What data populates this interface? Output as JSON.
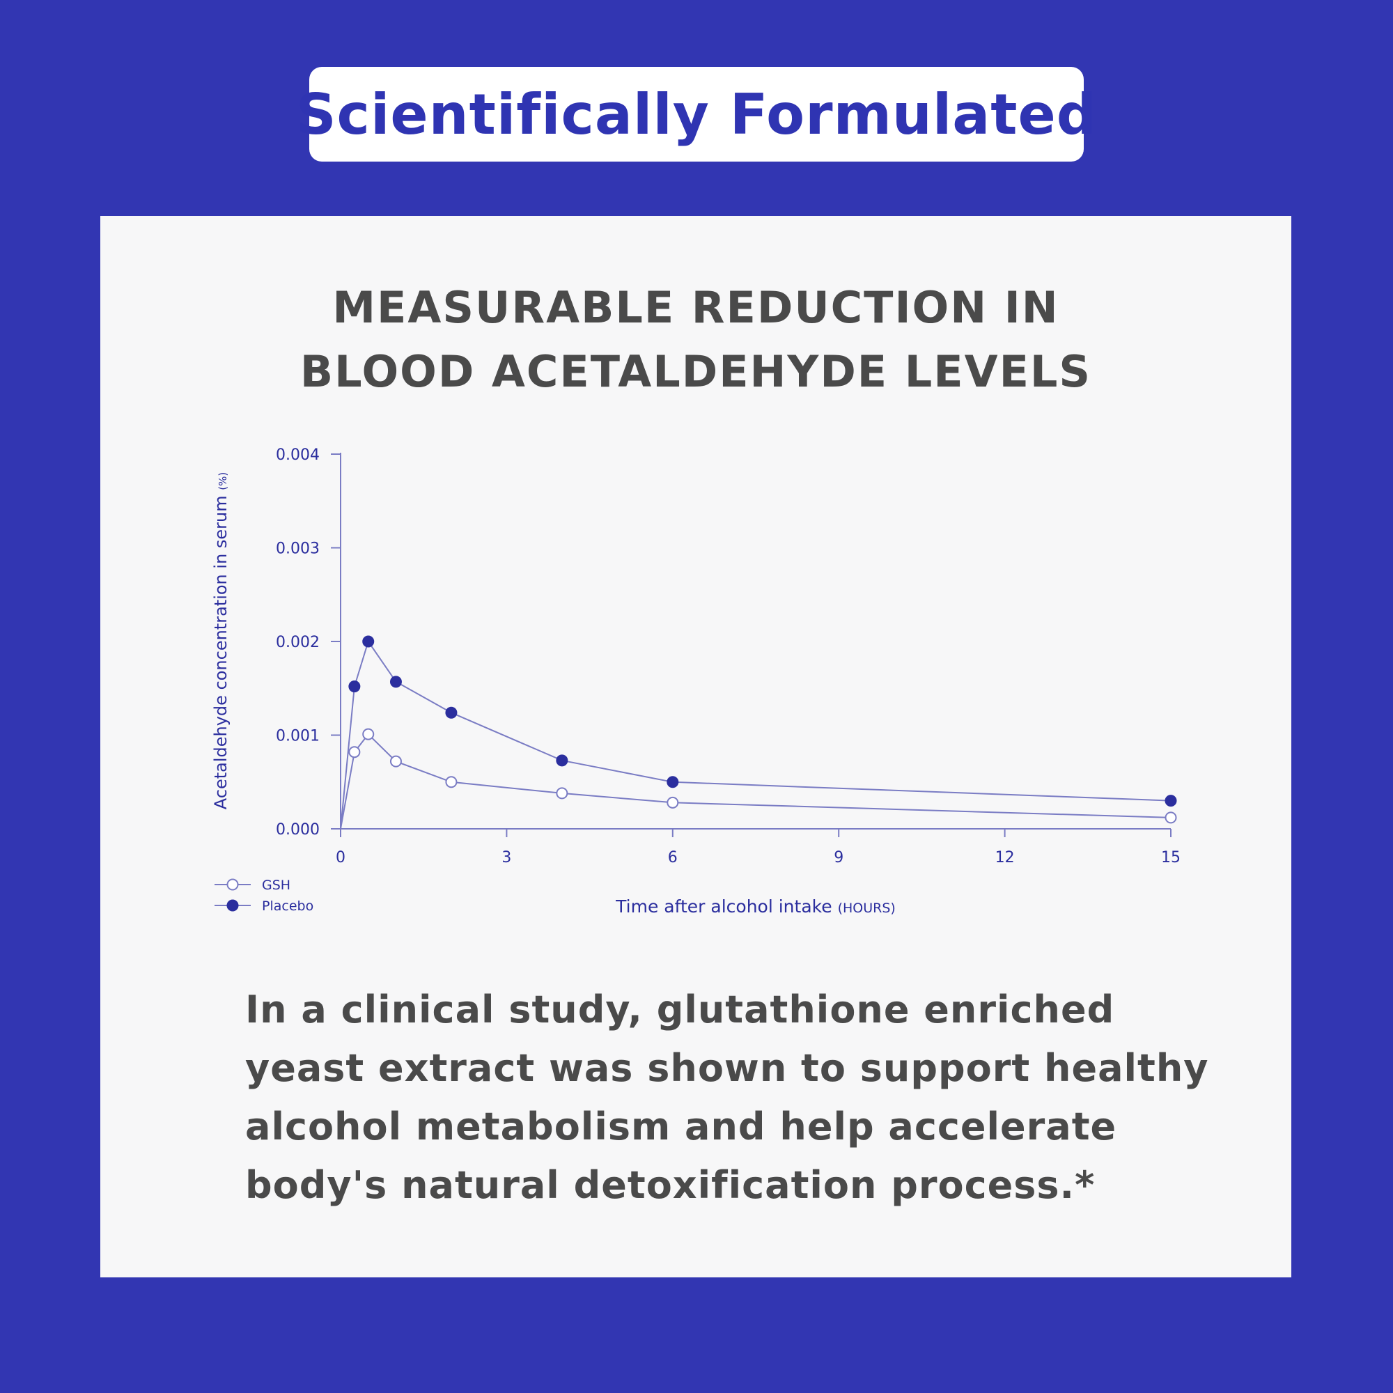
{
  "header": {
    "title": "Scientifically Formulated"
  },
  "chart_heading": {
    "line1": "MEASURABLE REDUCTION IN",
    "line2": "BLOOD ACETALDEHYDE LEVELS"
  },
  "chart_data": {
    "type": "line",
    "title": "MEASURABLE REDUCTION IN BLOOD ACETALDEHYDE LEVELS",
    "xlabel": "Time after alcohol intake",
    "xlabel_unit": "(HOURS)",
    "ylabel": "Acetaldehyde concentration in serum",
    "ylabel_unit": "(%)",
    "xlim": [
      0,
      15
    ],
    "ylim": [
      0,
      0.004
    ],
    "x_ticks": [
      0,
      3,
      6,
      9,
      12,
      15
    ],
    "x_tick_labels": [
      "0",
      "3",
      "6",
      "9",
      "12",
      "15"
    ],
    "y_ticks": [
      0,
      0.001,
      0.002,
      0.003,
      0.004
    ],
    "y_tick_labels": [
      "0.000",
      "0.001",
      "0.002",
      "0.003",
      "0.004"
    ],
    "grid": false,
    "legend_position": "bottom-left",
    "series": [
      {
        "name": "GSH",
        "marker": "open-circle",
        "points": [
          [
            0,
            0
          ],
          [
            0.25,
            0.00082
          ],
          [
            0.5,
            0.00101
          ],
          [
            1,
            0.00072
          ],
          [
            2,
            0.0005
          ],
          [
            4,
            0.00038
          ],
          [
            6,
            0.00028
          ],
          [
            15,
            0.00012
          ]
        ]
      },
      {
        "name": "Placebo",
        "marker": "filled-circle",
        "points": [
          [
            0,
            0
          ],
          [
            0.25,
            0.00152
          ],
          [
            0.5,
            0.002
          ],
          [
            1,
            0.00157
          ],
          [
            2,
            0.00124
          ],
          [
            4,
            0.00073
          ],
          [
            6,
            0.0005
          ],
          [
            15,
            0.0003
          ]
        ]
      }
    ]
  },
  "colors": {
    "background": "#3236b2",
    "accent": "#2f34b2",
    "card": "#f7f7f8",
    "text": "#4a4a4a",
    "line": "#7a7cc4",
    "marker": "#2b2e9e"
  },
  "body": {
    "line1": "In a clinical study, glutathione enriched",
    "line2": "yeast extract was shown to support healthy",
    "line3": "alcohol metabolism and help accelerate",
    "line4": "body's natural detoxification process.*"
  }
}
